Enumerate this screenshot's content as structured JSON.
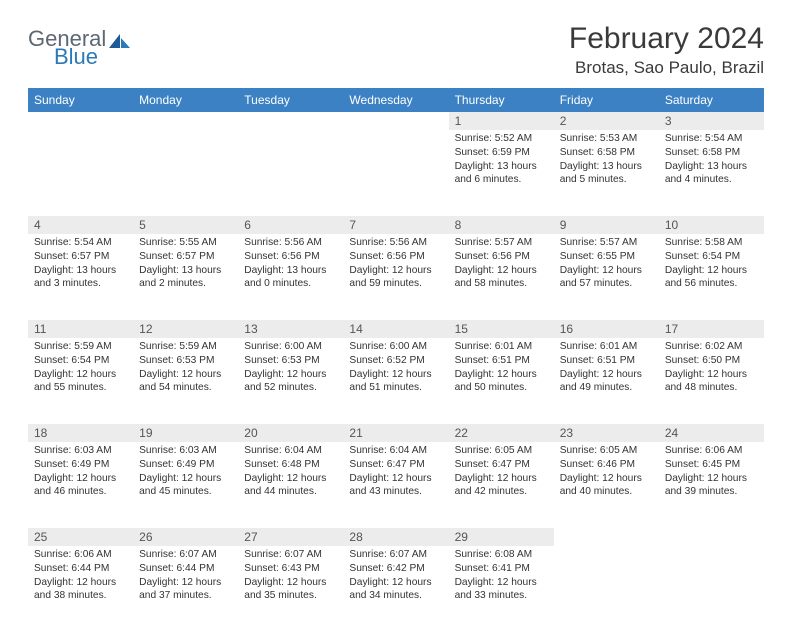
{
  "logo": {
    "word1": "General",
    "word2": "Blue"
  },
  "title": "February 2024",
  "location": "Brotas, Sao Paulo, Brazil",
  "header_bg": "#3b81c3",
  "daynames": [
    "Sunday",
    "Monday",
    "Tuesday",
    "Wednesday",
    "Thursday",
    "Friday",
    "Saturday"
  ],
  "weeks": [
    [
      null,
      null,
      null,
      null,
      {
        "n": "1",
        "sr": "5:52 AM",
        "ss": "6:59 PM",
        "dl": "13 hours and 6 minutes."
      },
      {
        "n": "2",
        "sr": "5:53 AM",
        "ss": "6:58 PM",
        "dl": "13 hours and 5 minutes."
      },
      {
        "n": "3",
        "sr": "5:54 AM",
        "ss": "6:58 PM",
        "dl": "13 hours and 4 minutes."
      }
    ],
    [
      {
        "n": "4",
        "sr": "5:54 AM",
        "ss": "6:57 PM",
        "dl": "13 hours and 3 minutes."
      },
      {
        "n": "5",
        "sr": "5:55 AM",
        "ss": "6:57 PM",
        "dl": "13 hours and 2 minutes."
      },
      {
        "n": "6",
        "sr": "5:56 AM",
        "ss": "6:56 PM",
        "dl": "13 hours and 0 minutes."
      },
      {
        "n": "7",
        "sr": "5:56 AM",
        "ss": "6:56 PM",
        "dl": "12 hours and 59 minutes."
      },
      {
        "n": "8",
        "sr": "5:57 AM",
        "ss": "6:56 PM",
        "dl": "12 hours and 58 minutes."
      },
      {
        "n": "9",
        "sr": "5:57 AM",
        "ss": "6:55 PM",
        "dl": "12 hours and 57 minutes."
      },
      {
        "n": "10",
        "sr": "5:58 AM",
        "ss": "6:54 PM",
        "dl": "12 hours and 56 minutes."
      }
    ],
    [
      {
        "n": "11",
        "sr": "5:59 AM",
        "ss": "6:54 PM",
        "dl": "12 hours and 55 minutes."
      },
      {
        "n": "12",
        "sr": "5:59 AM",
        "ss": "6:53 PM",
        "dl": "12 hours and 54 minutes."
      },
      {
        "n": "13",
        "sr": "6:00 AM",
        "ss": "6:53 PM",
        "dl": "12 hours and 52 minutes."
      },
      {
        "n": "14",
        "sr": "6:00 AM",
        "ss": "6:52 PM",
        "dl": "12 hours and 51 minutes."
      },
      {
        "n": "15",
        "sr": "6:01 AM",
        "ss": "6:51 PM",
        "dl": "12 hours and 50 minutes."
      },
      {
        "n": "16",
        "sr": "6:01 AM",
        "ss": "6:51 PM",
        "dl": "12 hours and 49 minutes."
      },
      {
        "n": "17",
        "sr": "6:02 AM",
        "ss": "6:50 PM",
        "dl": "12 hours and 48 minutes."
      }
    ],
    [
      {
        "n": "18",
        "sr": "6:03 AM",
        "ss": "6:49 PM",
        "dl": "12 hours and 46 minutes."
      },
      {
        "n": "19",
        "sr": "6:03 AM",
        "ss": "6:49 PM",
        "dl": "12 hours and 45 minutes."
      },
      {
        "n": "20",
        "sr": "6:04 AM",
        "ss": "6:48 PM",
        "dl": "12 hours and 44 minutes."
      },
      {
        "n": "21",
        "sr": "6:04 AM",
        "ss": "6:47 PM",
        "dl": "12 hours and 43 minutes."
      },
      {
        "n": "22",
        "sr": "6:05 AM",
        "ss": "6:47 PM",
        "dl": "12 hours and 42 minutes."
      },
      {
        "n": "23",
        "sr": "6:05 AM",
        "ss": "6:46 PM",
        "dl": "12 hours and 40 minutes."
      },
      {
        "n": "24",
        "sr": "6:06 AM",
        "ss": "6:45 PM",
        "dl": "12 hours and 39 minutes."
      }
    ],
    [
      {
        "n": "25",
        "sr": "6:06 AM",
        "ss": "6:44 PM",
        "dl": "12 hours and 38 minutes."
      },
      {
        "n": "26",
        "sr": "6:07 AM",
        "ss": "6:44 PM",
        "dl": "12 hours and 37 minutes."
      },
      {
        "n": "27",
        "sr": "6:07 AM",
        "ss": "6:43 PM",
        "dl": "12 hours and 35 minutes."
      },
      {
        "n": "28",
        "sr": "6:07 AM",
        "ss": "6:42 PM",
        "dl": "12 hours and 34 minutes."
      },
      {
        "n": "29",
        "sr": "6:08 AM",
        "ss": "6:41 PM",
        "dl": "12 hours and 33 minutes."
      },
      null,
      null
    ]
  ],
  "labels": {
    "sunrise": "Sunrise: ",
    "sunset": "Sunset: ",
    "daylight": "Daylight: "
  }
}
